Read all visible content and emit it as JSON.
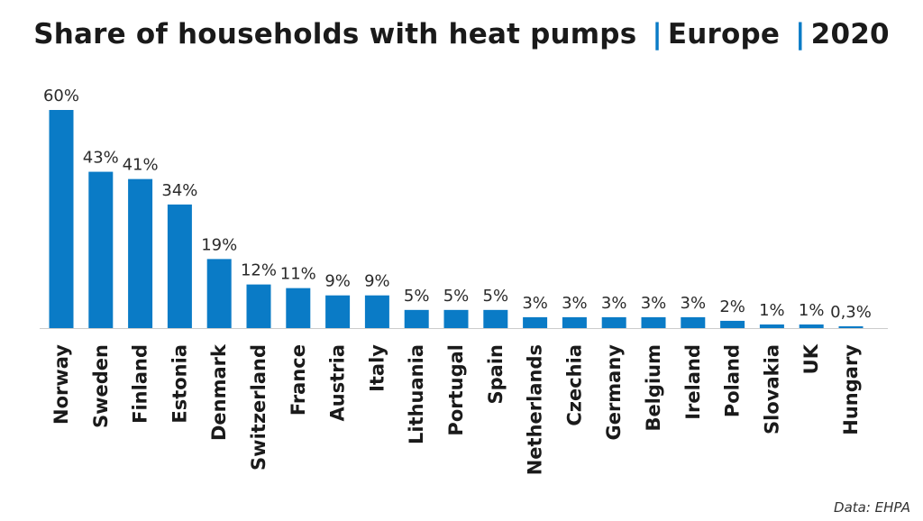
{
  "title": {
    "main": "Share of households with heat pumps",
    "separator": "|",
    "region": "Europe",
    "year": "2020"
  },
  "source": "Data: EHPA",
  "colors": {
    "bar": "#0a7bc6",
    "separator": "#0a7bc6",
    "axis": "#cccccc"
  },
  "chart_data": {
    "type": "bar",
    "categories": [
      "Norway",
      "Sweden",
      "Finland",
      "Estonia",
      "Denmark",
      "Switzerland",
      "France",
      "Austria",
      "Italy",
      "Lithuania",
      "Portugal",
      "Spain",
      "Netherlands",
      "Czechia",
      "Germany",
      "Belgium",
      "Ireland",
      "Poland",
      "Slovakia",
      "UK",
      "Hungary"
    ],
    "values": [
      60,
      43,
      41,
      34,
      19,
      12,
      11,
      9,
      9,
      5,
      5,
      5,
      3,
      3,
      3,
      3,
      3,
      2,
      1,
      1,
      0.3
    ],
    "labels": [
      "60%",
      "43%",
      "41%",
      "34%",
      "19%",
      "12%",
      "11%",
      "9%",
      "9%",
      "5%",
      "5%",
      "5%",
      "3%",
      "3%",
      "3%",
      "3%",
      "3%",
      "2%",
      "1%",
      "1%",
      "0,3%"
    ],
    "unit": "%",
    "ylim": [
      0,
      60
    ],
    "grid": false,
    "legend": "none"
  }
}
